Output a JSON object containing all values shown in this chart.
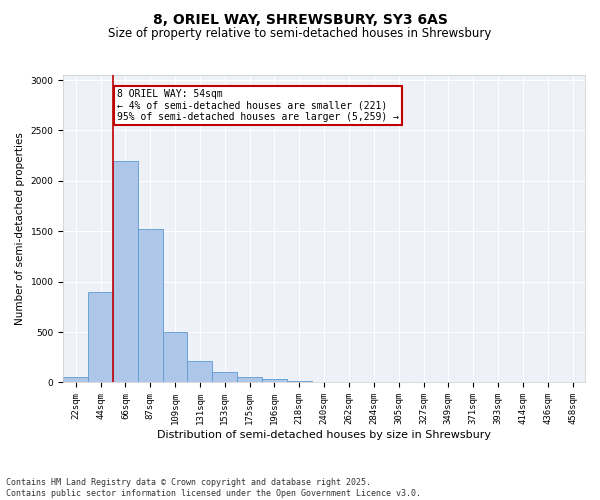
{
  "title": "8, ORIEL WAY, SHREWSBURY, SY3 6AS",
  "subtitle": "Size of property relative to semi-detached houses in Shrewsbury",
  "xlabel": "Distribution of semi-detached houses by size in Shrewsbury",
  "ylabel": "Number of semi-detached properties",
  "categories": [
    "22sqm",
    "44sqm",
    "66sqm",
    "87sqm",
    "109sqm",
    "131sqm",
    "153sqm",
    "175sqm",
    "196sqm",
    "218sqm",
    "240sqm",
    "262sqm",
    "284sqm",
    "305sqm",
    "327sqm",
    "349sqm",
    "371sqm",
    "393sqm",
    "414sqm",
    "436sqm",
    "458sqm"
  ],
  "values": [
    50,
    900,
    2200,
    1520,
    500,
    210,
    105,
    50,
    35,
    10,
    5,
    0,
    0,
    0,
    0,
    0,
    0,
    0,
    0,
    0,
    0
  ],
  "bar_color": "#aec6e8",
  "bar_edge_color": "#5b9bd5",
  "vline_x": 1.5,
  "vline_color": "#c00000",
  "annotation_text": "8 ORIEL WAY: 54sqm\n← 4% of semi-detached houses are smaller (221)\n95% of semi-detached houses are larger (5,259) →",
  "annotation_box_color": "#ffffff",
  "annotation_box_edge_color": "#c00000",
  "ylim": [
    0,
    3050
  ],
  "yticks": [
    0,
    500,
    1000,
    1500,
    2000,
    2500,
    3000
  ],
  "bg_color": "#eef2f8",
  "footer_line1": "Contains HM Land Registry data © Crown copyright and database right 2025.",
  "footer_line2": "Contains public sector information licensed under the Open Government Licence v3.0.",
  "title_fontsize": 10,
  "subtitle_fontsize": 8.5,
  "xlabel_fontsize": 8,
  "ylabel_fontsize": 7.5,
  "tick_fontsize": 6.5,
  "annotation_fontsize": 7,
  "footer_fontsize": 6
}
